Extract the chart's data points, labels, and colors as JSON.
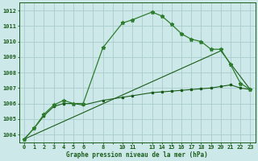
{
  "xlabel": "Graphe pression niveau de la mer (hPa)",
  "background_color": "#cce8e8",
  "grid_color": "#aacccc",
  "dark_green": "#1a5c1a",
  "mid_green": "#2e7d2e",
  "ylim": [
    1003.5,
    1012.5
  ],
  "xlim": [
    -0.5,
    23.5
  ],
  "yticks": [
    1004,
    1005,
    1006,
    1007,
    1008,
    1009,
    1010,
    1011,
    1012
  ],
  "xtick_labels": [
    "0",
    "1",
    "2",
    "3",
    "4",
    "5",
    "6",
    "8",
    "1011",
    "13",
    "14",
    "15",
    "16",
    "17",
    "18",
    "19",
    "20",
    "21",
    "22",
    "23"
  ],
  "series1_x": [
    0,
    1,
    2,
    3,
    4,
    5,
    6,
    8,
    10,
    11,
    13,
    14,
    15,
    16,
    17,
    18,
    19,
    20,
    21,
    22,
    23
  ],
  "series1_y": [
    1003.7,
    1004.4,
    1005.3,
    1005.9,
    1006.2,
    1006.0,
    1006.0,
    1009.6,
    1011.2,
    1011.4,
    1011.9,
    1011.65,
    1011.1,
    1010.5,
    1010.15,
    1010.0,
    1009.5,
    1009.5,
    1008.5,
    1007.3,
    1006.9
  ],
  "series2_x": [
    0,
    1,
    2,
    3,
    4,
    5,
    6,
    8,
    10,
    11,
    13,
    14,
    15,
    16,
    17,
    18,
    19,
    20,
    21,
    22,
    23
  ],
  "series2_y": [
    1003.7,
    1004.4,
    1005.2,
    1005.8,
    1006.0,
    1006.0,
    1005.9,
    1006.2,
    1006.4,
    1006.5,
    1006.7,
    1006.75,
    1006.8,
    1006.85,
    1006.9,
    1006.95,
    1007.0,
    1007.1,
    1007.2,
    1007.0,
    1006.9
  ],
  "series3_x": [
    0,
    20,
    23
  ],
  "series3_y": [
    1003.7,
    1009.4,
    1006.9
  ]
}
